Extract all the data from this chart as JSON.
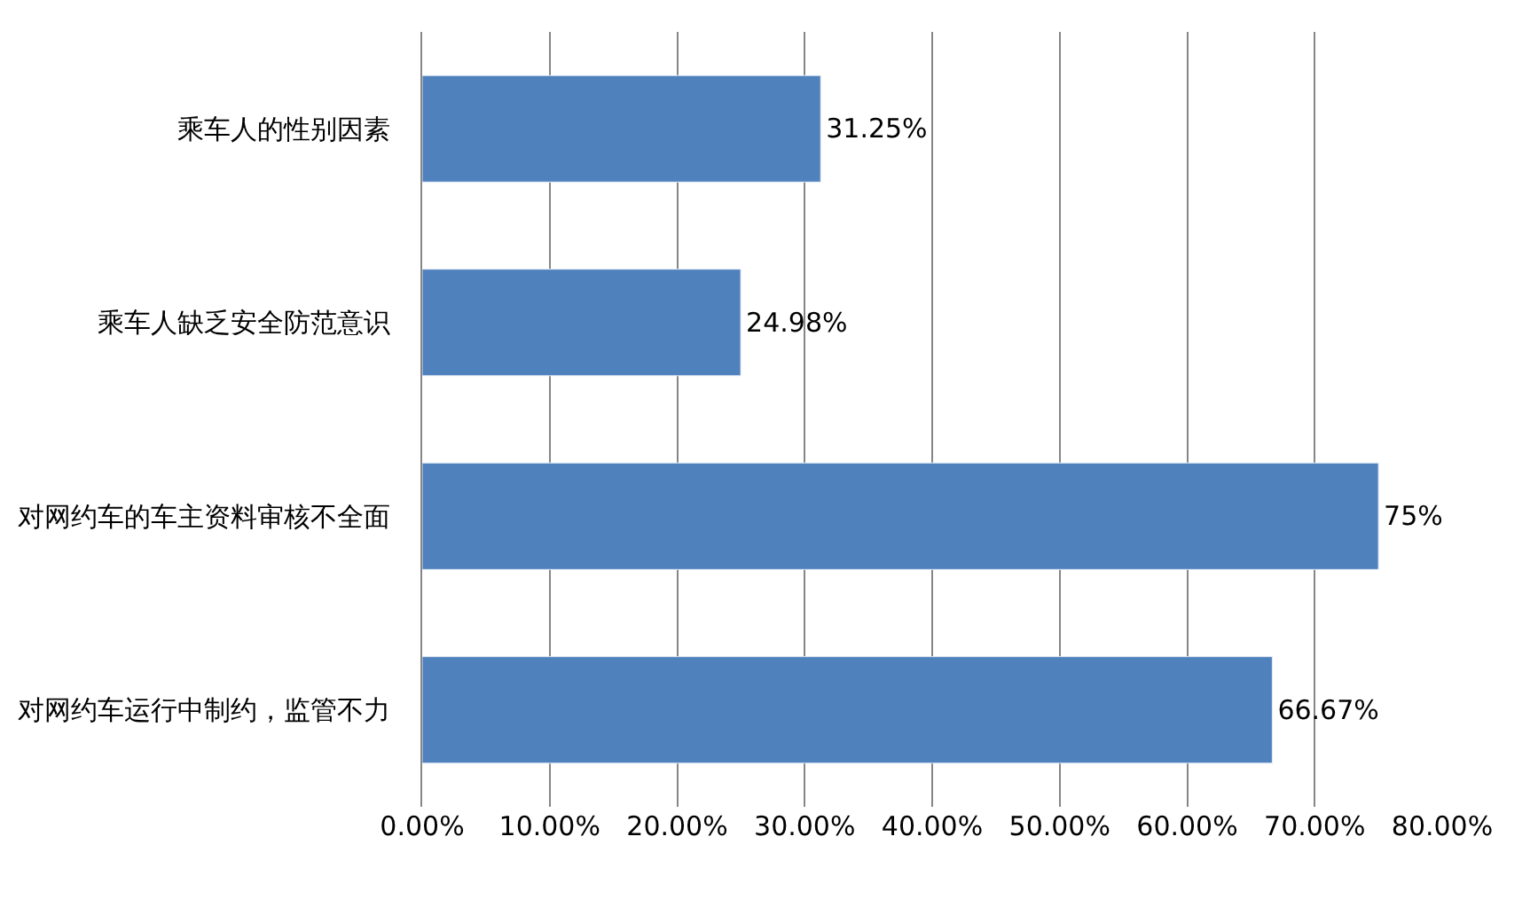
{
  "chart_data": {
    "type": "bar",
    "orientation": "horizontal",
    "categories": [
      "乘车人的性别因素",
      "乘车人缺乏安全防范意识",
      "对网约车的车主资料审核不全面",
      "对网约车运行中制约，监管不力"
    ],
    "values": [
      31.25,
      24.98,
      75,
      66.67
    ],
    "value_labels": [
      "31.25%",
      "24.98%",
      "75%",
      "66.67%"
    ],
    "color": "#4f81bd",
    "xlim": [
      0,
      80
    ],
    "xticks": [
      {
        "value": 0,
        "label": "0.00%"
      },
      {
        "value": 10,
        "label": "10.00%"
      },
      {
        "value": 20,
        "label": "20.00%"
      },
      {
        "value": 30,
        "label": "30.00%"
      },
      {
        "value": 40,
        "label": "40.00%"
      },
      {
        "value": 50,
        "label": "50.00%"
      },
      {
        "value": 60,
        "label": "60.00%"
      },
      {
        "value": 70,
        "label": "70.00%"
      },
      {
        "value": 80,
        "label": "80.00%"
      }
    ],
    "grid": "x"
  }
}
